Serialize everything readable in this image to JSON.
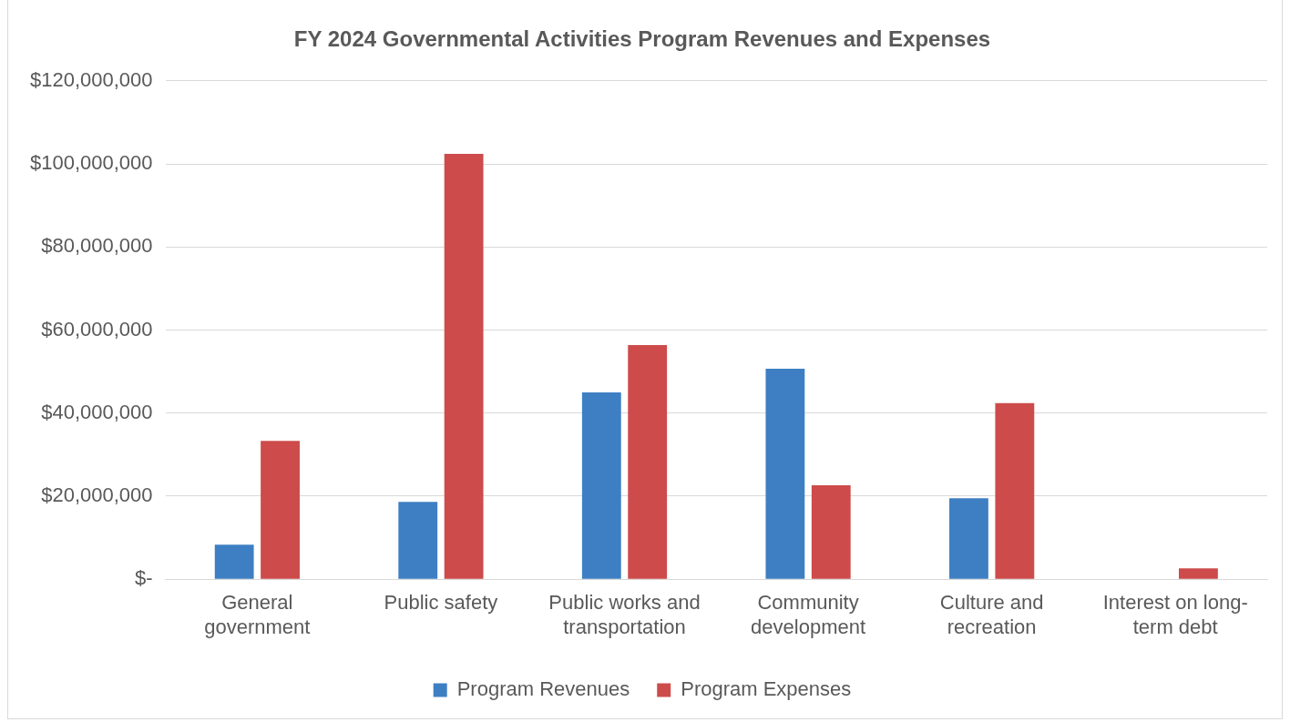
{
  "chart_data": {
    "type": "bar",
    "title": "FY 2024 Governmental Activities Program Revenues and Expenses",
    "categories": [
      "General government",
      "Public safety",
      "Public works and transportation",
      "Community development",
      "Culture and recreation",
      "Interest on long-term debt"
    ],
    "series": [
      {
        "name": "Program Revenues",
        "color": "#3e7fc3",
        "values": [
          8300000,
          18600000,
          45000000,
          50700000,
          19500000,
          0
        ]
      },
      {
        "name": "Program Expenses",
        "color": "#cd4b4b",
        "values": [
          33300000,
          102400000,
          56400000,
          22600000,
          42400000,
          2600000
        ]
      }
    ],
    "ylim": [
      0,
      120000000
    ],
    "yticks": [
      {
        "value": 0,
        "label": "$-"
      },
      {
        "value": 20000000,
        "label": "$20,000,000"
      },
      {
        "value": 40000000,
        "label": "$40,000,000"
      },
      {
        "value": 60000000,
        "label": "$60,000,000"
      },
      {
        "value": 80000000,
        "label": "$80,000,000"
      },
      {
        "value": 100000000,
        "label": "$100,000,000"
      },
      {
        "value": 120000000,
        "label": "$120,000,000"
      }
    ],
    "grid": "y",
    "legend": "bottom"
  }
}
